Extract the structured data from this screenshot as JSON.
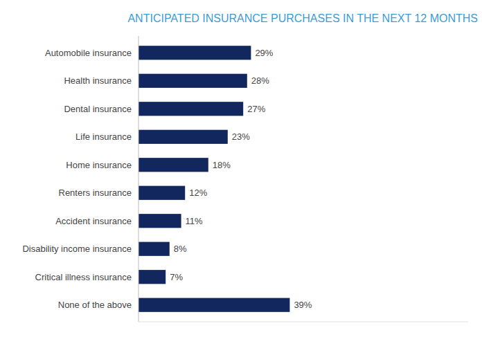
{
  "chart_data": {
    "type": "bar",
    "orientation": "horizontal",
    "title": "ANTICIPATED INSURANCE PURCHASES IN THE NEXT 12 MONTHS",
    "categories": [
      "None of the above",
      "Critical illness insurance",
      "Disability income insurance",
      "Accident insurance",
      "Renters insurance",
      "Home insurance",
      "Life insurance",
      "Dental insurance",
      "Health insurance",
      "Automobile insurance"
    ],
    "values": [
      39,
      7,
      8,
      11,
      12,
      18,
      23,
      27,
      28,
      29
    ],
    "value_labels": [
      "39%",
      "7%",
      "8%",
      "11%",
      "12%",
      "18%",
      "23%",
      "27%",
      "28%",
      "29%"
    ],
    "color": "#12275e",
    "xlim": [
      0,
      85
    ],
    "data_labels": true,
    "tick_labels": "y",
    "grid": false
  }
}
